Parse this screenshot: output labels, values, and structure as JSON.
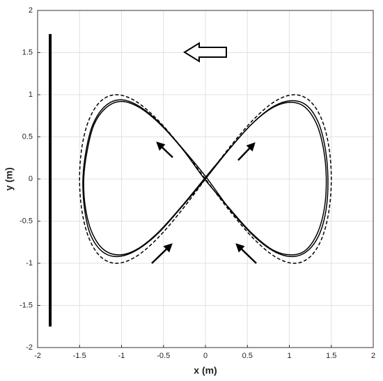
{
  "chart_data": {
    "type": "line",
    "x_label": "x (m)",
    "y_label": "y (m)",
    "xlim": [
      -2,
      2
    ],
    "ylim": [
      -2,
      2
    ],
    "xticks": [
      -2,
      -1.5,
      -1,
      -0.5,
      0,
      0.5,
      1,
      1.5,
      2
    ],
    "yticks": [
      -2,
      -1.5,
      -1,
      -0.5,
      0,
      0.5,
      1,
      1.5,
      2
    ],
    "grid": true,
    "series": [
      {
        "color": "#000000",
        "dashed": true,
        "smooth": true,
        "x": [
          0,
          0.293,
          0.574,
          0.833,
          1.061,
          1.247,
          1.386,
          1.471,
          1.5,
          1.471,
          1.386,
          1.247,
          1.061,
          0.833,
          0.574,
          0.293,
          0,
          -0.293,
          -0.574,
          -0.833,
          -1.061,
          -1.247,
          -1.386,
          -1.471,
          -1.5,
          -1.471,
          -1.386,
          -1.247,
          -1.061,
          -0.833,
          -0.574,
          -0.293,
          0
        ],
        "y": [
          0,
          0.383,
          0.707,
          0.924,
          1,
          0.924,
          0.707,
          0.383,
          0,
          -0.383,
          -0.707,
          -0.924,
          -1,
          -0.924,
          -0.707,
          -0.383,
          0,
          0.383,
          0.707,
          0.924,
          1,
          0.924,
          0.707,
          0.383,
          0,
          -0.383,
          -0.707,
          -0.924,
          -1,
          -0.924,
          -0.707,
          -0.383,
          0
        ]
      },
      {
        "color": "#000000",
        "dashed": false,
        "smooth": true,
        "x": [
          0,
          0.29,
          0.56,
          0.81,
          1.03,
          1.21,
          1.35,
          1.43,
          1.46,
          1.44,
          1.36,
          1.22,
          1.04,
          0.82,
          0.57,
          0.29,
          0.01,
          -0.28,
          -0.55,
          -0.8,
          -1.02,
          -1.2,
          -1.34,
          -1.42,
          -1.46,
          -1.44,
          -1.37,
          -1.23,
          -1.05,
          -0.83,
          -0.57,
          -0.29,
          0
        ],
        "y": [
          0,
          0.36,
          0.66,
          0.86,
          0.93,
          0.87,
          0.66,
          0.35,
          0,
          -0.35,
          -0.65,
          -0.85,
          -0.92,
          -0.86,
          -0.67,
          -0.36,
          0.02,
          0.37,
          0.67,
          0.87,
          0.94,
          0.86,
          0.65,
          0.35,
          0,
          -0.36,
          -0.66,
          -0.86,
          -0.92,
          -0.85,
          -0.65,
          -0.34,
          0
        ]
      },
      {
        "color": "#000000",
        "dashed": false,
        "smooth": true,
        "x": [
          0,
          0.27,
          0.54,
          0.79,
          1.01,
          1.19,
          1.33,
          1.41,
          1.44,
          1.42,
          1.34,
          1.2,
          1.02,
          0.8,
          0.55,
          0.27,
          -0.01,
          -0.27,
          -0.54,
          -0.79,
          -1.01,
          -1.19,
          -1.33,
          -1.41,
          -1.45,
          -1.43,
          -1.35,
          -1.21,
          -1.02,
          -0.81,
          -0.56,
          -0.28,
          0
        ],
        "y": [
          0.02,
          0.34,
          0.64,
          0.84,
          0.91,
          0.85,
          0.64,
          0.34,
          0.01,
          -0.33,
          -0.63,
          -0.84,
          -0.9,
          -0.84,
          -0.64,
          -0.33,
          0,
          0.35,
          0.65,
          0.85,
          0.92,
          0.84,
          0.64,
          0.33,
          0,
          -0.34,
          -0.64,
          -0.84,
          -0.9,
          -0.83,
          -0.63,
          -0.32,
          0.02
        ]
      },
      {
        "color": "#000000",
        "dashed": false,
        "smooth": false,
        "width": 4,
        "x": [
          -1.85,
          -1.85
        ],
        "y": [
          -1.75,
          1.72
        ]
      }
    ]
  }
}
